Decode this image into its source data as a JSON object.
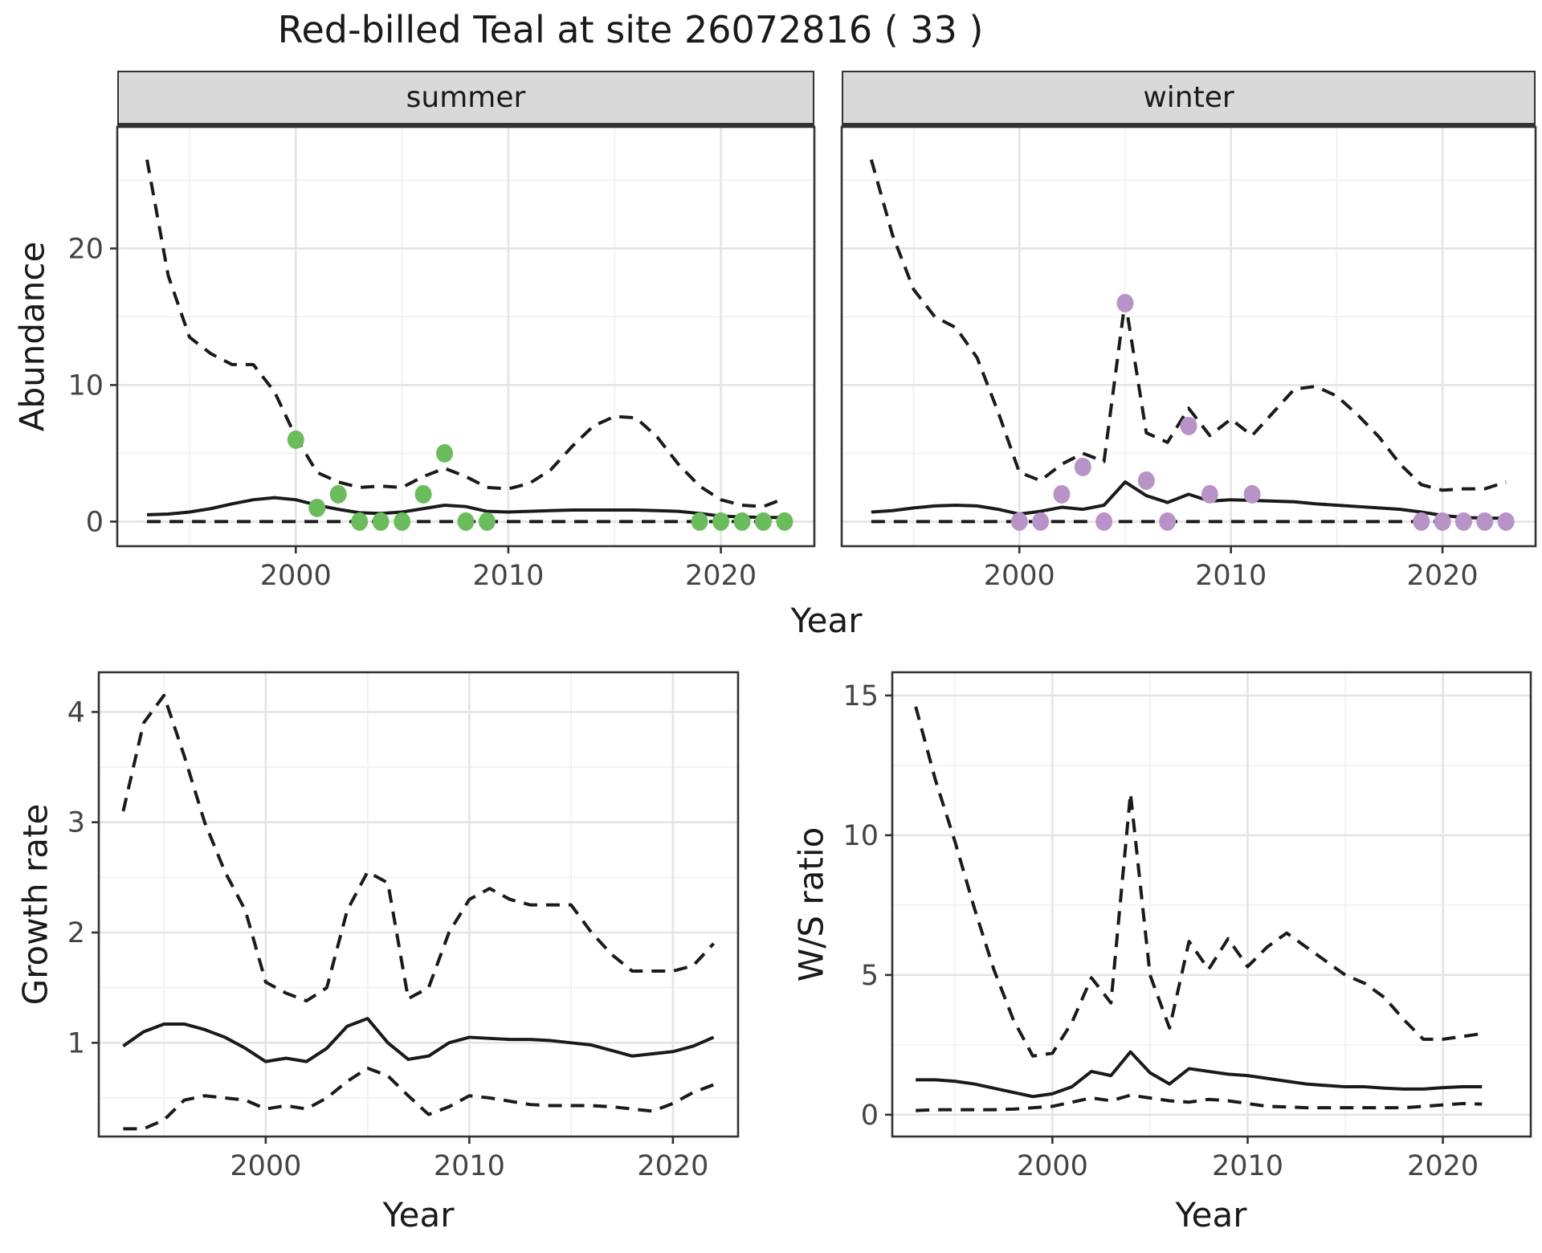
{
  "title": "Red-billed Teal at site 26072816 ( 33 )",
  "facets": {
    "summer": "summer",
    "winter": "winter"
  },
  "axes": {
    "year": "Year",
    "abundance": "Abundance",
    "growth_rate": "Growth rate",
    "ws_ratio": "W/S ratio"
  },
  "colors": {
    "summer_points": "#6BBC5C",
    "winter_points": "#B793C8",
    "line": "#1A1A1A",
    "panel_border": "#333333",
    "strip_bg": "#D9D9D9",
    "grid_major": "#E4E4E4",
    "grid_minor": "#F2F2F2",
    "tick_text": "#444444"
  },
  "chart_data": [
    {
      "id": "abundance_summer",
      "type": "line+scatter",
      "facet": "summer",
      "xlabel": "Year",
      "ylabel": "Abundance",
      "xlim": [
        1991.6,
        2024.4
      ],
      "ylim": [
        -1.8,
        28.9
      ],
      "xticks": [
        2000,
        2010,
        2020
      ],
      "yticks": [
        0,
        10,
        20
      ],
      "show_y_tick_labels": true,
      "series": [
        {
          "name": "upper_95ci",
          "style": "dashed",
          "years": [
            1993,
            1994,
            1995,
            1996,
            1997,
            1998,
            1999,
            2000,
            2001,
            2002,
            2003,
            2004,
            2005,
            2006,
            2007,
            2008,
            2009,
            2010,
            2011,
            2012,
            2013,
            2014,
            2015,
            2016,
            2017,
            2018,
            2019,
            2020,
            2021,
            2022,
            2023
          ],
          "values": [
            26.5,
            18.0,
            13.5,
            12.3,
            11.5,
            11.5,
            9.5,
            6.2,
            3.6,
            2.9,
            2.5,
            2.6,
            2.5,
            3.3,
            3.9,
            3.3,
            2.5,
            2.4,
            2.8,
            3.8,
            5.5,
            7.0,
            7.7,
            7.6,
            6.2,
            4.2,
            2.6,
            1.6,
            1.2,
            1.1,
            1.7
          ]
        },
        {
          "name": "mean",
          "style": "solid",
          "years": [
            1993,
            1994,
            1995,
            1996,
            1997,
            1998,
            1999,
            2000,
            2001,
            2002,
            2003,
            2004,
            2005,
            2006,
            2007,
            2008,
            2009,
            2010,
            2011,
            2012,
            2013,
            2014,
            2015,
            2016,
            2017,
            2018,
            2019,
            2020,
            2021,
            2022,
            2023
          ],
          "values": [
            0.5,
            0.55,
            0.7,
            0.95,
            1.3,
            1.6,
            1.75,
            1.6,
            1.2,
            0.9,
            0.65,
            0.6,
            0.7,
            0.95,
            1.2,
            1.1,
            0.75,
            0.7,
            0.75,
            0.8,
            0.85,
            0.85,
            0.85,
            0.85,
            0.8,
            0.75,
            0.6,
            0.4,
            0.35,
            0.3,
            0.3
          ]
        },
        {
          "name": "lower_95ci",
          "style": "dashed",
          "years": [
            1993,
            2023
          ],
          "values": [
            0,
            0
          ]
        }
      ],
      "points": {
        "name": "observed_counts",
        "color": "#6BBC5C",
        "years": [
          2000,
          2001,
          2002,
          2003,
          2004,
          2005,
          2006,
          2007,
          2008,
          2009,
          2019,
          2020,
          2021,
          2022,
          2023
        ],
        "values": [
          6,
          1,
          2,
          0,
          0,
          0,
          2,
          5,
          0,
          0,
          0,
          0,
          0,
          0,
          0
        ]
      }
    },
    {
      "id": "abundance_winter",
      "type": "line+scatter",
      "facet": "winter",
      "xlabel": "Year",
      "ylabel": "Abundance",
      "xlim": [
        1991.6,
        2024.4
      ],
      "ylim": [
        -1.8,
        28.9
      ],
      "xticks": [
        2000,
        2010,
        2020
      ],
      "yticks": [
        0,
        10,
        20
      ],
      "show_y_tick_labels": false,
      "series": [
        {
          "name": "upper_95ci",
          "style": "dashed",
          "years": [
            1993,
            1994,
            1995,
            1996,
            1997,
            1998,
            1999,
            2000,
            2001,
            2002,
            2003,
            2004,
            2005,
            2006,
            2007,
            2008,
            2009,
            2010,
            2011,
            2012,
            2013,
            2014,
            2015,
            2016,
            2017,
            2018,
            2019,
            2020,
            2021,
            2022,
            2023
          ],
          "values": [
            26.5,
            21.0,
            17.0,
            15.0,
            14.2,
            12.0,
            8.0,
            3.6,
            3.0,
            4.2,
            5.0,
            4.4,
            16.2,
            6.5,
            5.8,
            8.3,
            6.3,
            7.5,
            6.3,
            8.0,
            9.7,
            9.9,
            9.2,
            7.8,
            6.2,
            4.2,
            2.7,
            2.3,
            2.4,
            2.4,
            2.9
          ]
        },
        {
          "name": "mean",
          "style": "solid",
          "years": [
            1993,
            1994,
            1995,
            1996,
            1997,
            1998,
            1999,
            2000,
            2001,
            2002,
            2003,
            2004,
            2005,
            2006,
            2007,
            2008,
            2009,
            2010,
            2011,
            2012,
            2013,
            2014,
            2015,
            2016,
            2017,
            2018,
            2019,
            2020,
            2021,
            2022,
            2023
          ],
          "values": [
            0.7,
            0.8,
            1.0,
            1.15,
            1.2,
            1.15,
            0.9,
            0.55,
            0.75,
            1.05,
            0.9,
            1.2,
            2.9,
            1.9,
            1.4,
            2.0,
            1.5,
            1.6,
            1.55,
            1.5,
            1.45,
            1.3,
            1.2,
            1.1,
            1.0,
            0.9,
            0.7,
            0.45,
            0.3,
            0.25,
            0.25
          ]
        },
        {
          "name": "lower_95ci",
          "style": "dashed",
          "years": [
            1993,
            2023
          ],
          "values": [
            0,
            0
          ]
        }
      ],
      "points": {
        "name": "observed_counts",
        "color": "#B793C8",
        "years": [
          2000,
          2001,
          2002,
          2003,
          2004,
          2005,
          2006,
          2007,
          2008,
          2009,
          2011,
          2019,
          2020,
          2021,
          2022,
          2023
        ],
        "values": [
          0,
          0,
          2,
          4,
          0,
          16,
          3,
          0,
          7,
          2,
          2,
          0,
          0,
          0,
          0,
          0
        ]
      }
    },
    {
      "id": "growth_rate",
      "type": "line",
      "facet": "",
      "xlabel": "Year",
      "ylabel": "Growth rate",
      "xlim": [
        1991.8,
        2023.2
      ],
      "ylim": [
        0.15,
        4.36
      ],
      "xticks": [
        2000,
        2010,
        2020
      ],
      "yticks": [
        1,
        2,
        3,
        4
      ],
      "show_y_tick_labels": true,
      "series": [
        {
          "name": "upper_95ci",
          "style": "dashed",
          "years": [
            1993,
            1994,
            1995,
            1996,
            1997,
            1998,
            1999,
            2000,
            2001,
            2002,
            2003,
            2004,
            2005,
            2006,
            2007,
            2008,
            2009,
            2010,
            2011,
            2012,
            2013,
            2014,
            2015,
            2016,
            2017,
            2018,
            2019,
            2020,
            2021,
            2022
          ],
          "values": [
            3.1,
            3.9,
            4.15,
            3.6,
            3.0,
            2.55,
            2.2,
            1.55,
            1.45,
            1.38,
            1.5,
            2.2,
            2.55,
            2.45,
            1.4,
            1.5,
            2.0,
            2.3,
            2.4,
            2.3,
            2.25,
            2.25,
            2.25,
            2.0,
            1.8,
            1.65,
            1.65,
            1.65,
            1.7,
            1.9
          ]
        },
        {
          "name": "mean",
          "style": "solid",
          "years": [
            1993,
            1994,
            1995,
            1996,
            1997,
            1998,
            1999,
            2000,
            2001,
            2002,
            2003,
            2004,
            2005,
            2006,
            2007,
            2008,
            2009,
            2010,
            2011,
            2012,
            2013,
            2014,
            2015,
            2016,
            2017,
            2018,
            2019,
            2020,
            2021,
            2022
          ],
          "values": [
            0.97,
            1.1,
            1.17,
            1.17,
            1.12,
            1.05,
            0.95,
            0.83,
            0.86,
            0.83,
            0.95,
            1.15,
            1.22,
            1.0,
            0.85,
            0.88,
            1.0,
            1.05,
            1.04,
            1.03,
            1.03,
            1.02,
            1.0,
            0.98,
            0.93,
            0.88,
            0.9,
            0.92,
            0.97,
            1.05
          ]
        },
        {
          "name": "lower_95ci",
          "style": "dashed",
          "years": [
            1993,
            1994,
            1995,
            1996,
            1997,
            1998,
            1999,
            2000,
            2001,
            2002,
            2003,
            2004,
            2005,
            2006,
            2007,
            2008,
            2009,
            2010,
            2011,
            2012,
            2013,
            2014,
            2015,
            2016,
            2017,
            2018,
            2019,
            2020,
            2021,
            2022
          ],
          "values": [
            0.22,
            0.22,
            0.3,
            0.48,
            0.52,
            0.5,
            0.48,
            0.4,
            0.43,
            0.4,
            0.5,
            0.65,
            0.77,
            0.7,
            0.52,
            0.35,
            0.42,
            0.52,
            0.5,
            0.47,
            0.44,
            0.43,
            0.43,
            0.43,
            0.42,
            0.4,
            0.38,
            0.45,
            0.55,
            0.62
          ]
        }
      ],
      "points": null
    },
    {
      "id": "ws_ratio",
      "type": "line",
      "facet": "",
      "xlabel": "Year",
      "ylabel": "W/S ratio",
      "xlim": [
        1991.8,
        2024.5
      ],
      "ylim": [
        -0.78,
        15.83
      ],
      "xticks": [
        2000,
        2010,
        2020
      ],
      "yticks": [
        0,
        5,
        10,
        15
      ],
      "show_y_tick_labels": true,
      "series": [
        {
          "name": "upper_95ci",
          "style": "dashed",
          "years": [
            1993,
            1994,
            1995,
            1996,
            1997,
            1998,
            1999,
            2000,
            2001,
            2002,
            2003,
            2004,
            2005,
            2006,
            2007,
            2008,
            2009,
            2010,
            2011,
            2012,
            2013,
            2014,
            2015,
            2016,
            2017,
            2018,
            2019,
            2020,
            2021,
            2022
          ],
          "values": [
            14.6,
            12.0,
            9.8,
            7.4,
            5.2,
            3.4,
            2.1,
            2.2,
            3.3,
            4.9,
            4.0,
            11.5,
            5.0,
            3.1,
            6.2,
            5.2,
            6.3,
            5.3,
            6.0,
            6.5,
            6.0,
            5.5,
            5.0,
            4.7,
            4.2,
            3.4,
            2.7,
            2.7,
            2.8,
            2.9
          ]
        },
        {
          "name": "mean",
          "style": "solid",
          "years": [
            1993,
            1994,
            1995,
            1996,
            1997,
            1998,
            1999,
            2000,
            2001,
            2002,
            2003,
            2004,
            2005,
            2006,
            2007,
            2008,
            2009,
            2010,
            2011,
            2012,
            2013,
            2014,
            2015,
            2016,
            2017,
            2018,
            2019,
            2020,
            2021,
            2022
          ],
          "values": [
            1.25,
            1.25,
            1.2,
            1.1,
            0.95,
            0.8,
            0.65,
            0.75,
            1.0,
            1.55,
            1.4,
            2.25,
            1.5,
            1.1,
            1.65,
            1.55,
            1.45,
            1.4,
            1.3,
            1.2,
            1.1,
            1.05,
            1.0,
            1.0,
            0.95,
            0.92,
            0.92,
            0.97,
            1.0,
            1.0
          ]
        },
        {
          "name": "lower_95ci",
          "style": "dashed",
          "years": [
            1993,
            1994,
            1995,
            1996,
            1997,
            1998,
            1999,
            2000,
            2001,
            2002,
            2003,
            2004,
            2005,
            2006,
            2007,
            2008,
            2009,
            2010,
            2011,
            2012,
            2013,
            2014,
            2015,
            2016,
            2017,
            2018,
            2019,
            2020,
            2021,
            2022
          ],
          "values": [
            0.15,
            0.18,
            0.18,
            0.18,
            0.18,
            0.2,
            0.25,
            0.3,
            0.45,
            0.6,
            0.5,
            0.7,
            0.6,
            0.5,
            0.45,
            0.55,
            0.5,
            0.4,
            0.3,
            0.28,
            0.25,
            0.25,
            0.25,
            0.25,
            0.25,
            0.25,
            0.3,
            0.35,
            0.4,
            0.38
          ]
        }
      ],
      "points": null
    }
  ]
}
